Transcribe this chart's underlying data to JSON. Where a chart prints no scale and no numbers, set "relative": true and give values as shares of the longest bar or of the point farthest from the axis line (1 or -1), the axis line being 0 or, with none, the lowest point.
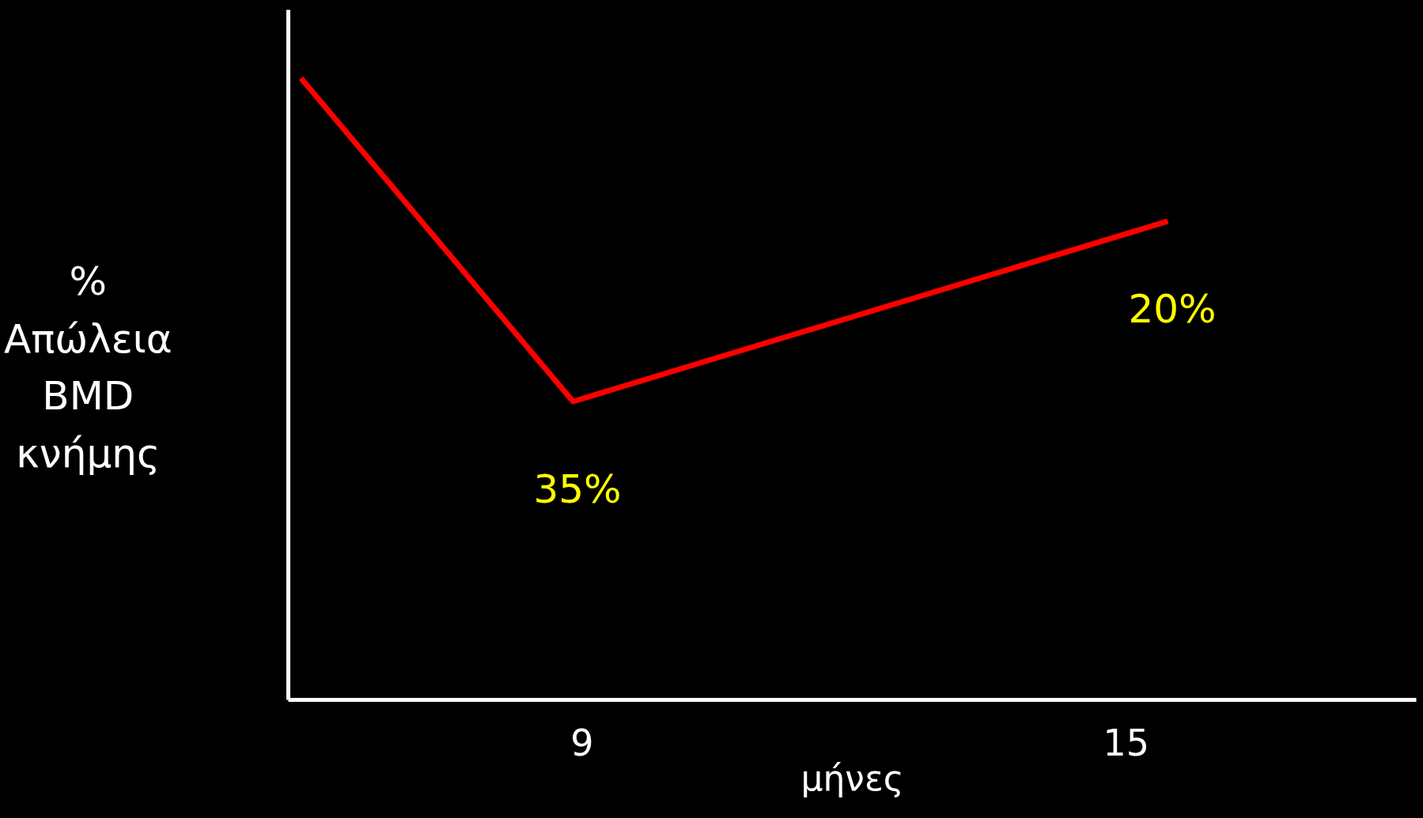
{
  "chart_data": {
    "type": "line",
    "relative": true,
    "ylabel": "%\nΑπώλεια\nBMD\nκνήμης",
    "xlabel": "μήνες",
    "x": [
      5.9,
      8.9,
      15.46
    ],
    "xlim": [
      5.76,
      18.2
    ],
    "xticks": [
      9,
      15
    ],
    "series": [
      {
        "color": "#ff0000",
        "values": [
          1,
          0.48,
          0.77
        ]
      }
    ],
    "annotations": [
      {
        "text": "35%",
        "x": 8.9,
        "y": 0.48
      },
      {
        "text": "20%",
        "x": 15.46,
        "y": 0.77
      }
    ],
    "grid": false
  }
}
